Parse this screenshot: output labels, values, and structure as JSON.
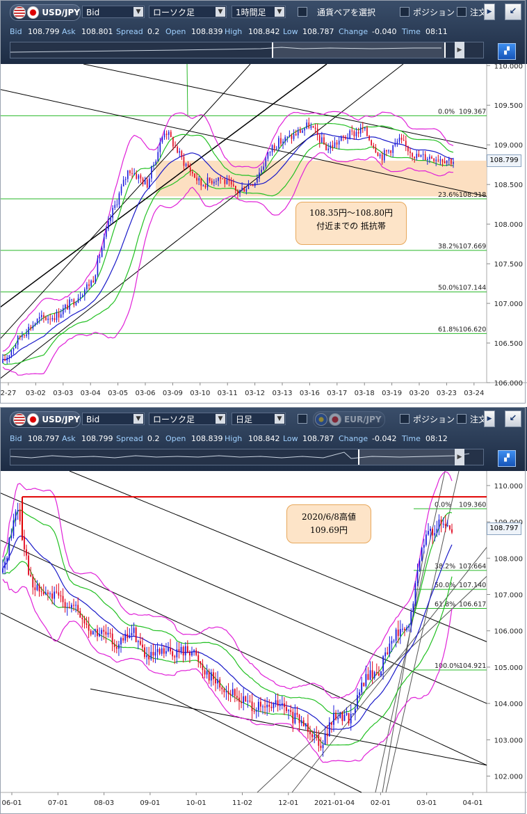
{
  "top": {
    "pair": "USD/JPY",
    "price_type": "Bid",
    "chart_style": "ローソク足",
    "timeframe": "1時間足",
    "select_pair_label": "通貨ペアを選択",
    "position_label": "ポジション",
    "order_label": "注文",
    "quote": {
      "bid_k": "Bid",
      "bid": "108.799",
      "ask_k": "Ask",
      "ask": "108.801",
      "spread_k": "Spread",
      "spread": "0.2",
      "open_k": "Open",
      "open": "108.839",
      "high_k": "High",
      "high": "108.842",
      "low_k": "Low",
      "low": "108.787",
      "change_k": "Change",
      "change": "-0.040",
      "time_k": "Time",
      "time": "08:11"
    },
    "current_price_tag": "108.799",
    "annotation": {
      "line1": "108.35円～108.80円",
      "line2": "付近までの 抵抗帯"
    }
  },
  "bottom": {
    "pair": "USD/JPY",
    "price_type": "Bid",
    "chart_style": "ローソク足",
    "timeframe": "日足",
    "compare_pair": "EUR/JPY",
    "position_label": "ポジション",
    "order_label": "注文",
    "quote": {
      "bid_k": "Bid",
      "bid": "108.797",
      "ask_k": "Ask",
      "ask": "108.799",
      "spread_k": "Spread",
      "spread": "0.2",
      "open_k": "Open",
      "open": "108.839",
      "high_k": "High",
      "high": "108.842",
      "low_k": "Low",
      "low": "108.787",
      "change_k": "Change",
      "change": "-0.042",
      "time_k": "Time",
      "time": "08:12"
    },
    "current_price_tag": "108.797",
    "annotation": {
      "line1": "2020/6/8高値",
      "line2": "109.69円"
    }
  },
  "colors": {
    "bull": "#1a1adc",
    "bear": "#e0001a",
    "upper_band": "#e020d8",
    "mid_band": "#22c022",
    "ma": "#1818c8",
    "fib": "#28b828",
    "trend": "#000000",
    "resistance": "#e00000",
    "zone": "#fbd9b6"
  },
  "chart_data": [
    {
      "type": "candlestick",
      "timeframe": "1時間足",
      "x_tick_labels": [
        "2-27",
        "03-02",
        "03-03",
        "03-04",
        "03-05",
        "03-06",
        "03-09",
        "03-10",
        "03-11",
        "03-12",
        "03-13",
        "03-16",
        "03-17",
        "03-18",
        "03-19",
        "03-20",
        "03-23",
        "03-24"
      ],
      "y_tick_labels": [
        "106.000",
        "106.500",
        "107.000",
        "107.500",
        "108.000",
        "108.500",
        "109.000",
        "109.500",
        "110.000"
      ],
      "ylim": [
        106.0,
        110.02
      ],
      "fibonacci": [
        {
          "label": "0.0%",
          "value": "109.367",
          "y": 109.367
        },
        {
          "label": "23.6%",
          "value": "108.318",
          "y": 108.318
        },
        {
          "label": "38.2%",
          "value": "107.669",
          "y": 107.669
        },
        {
          "label": "50.0%",
          "value": "107.144",
          "y": 107.144
        },
        {
          "label": "61.8%",
          "value": "106.620",
          "y": 106.62
        }
      ],
      "resistance_zone": [
        108.35,
        108.8
      ],
      "close_path": [
        [
          0,
          106.25
        ],
        [
          1,
          106.6
        ],
        [
          2,
          106.8
        ],
        [
          3,
          106.85
        ],
        [
          4,
          107.05
        ],
        [
          5,
          107.3
        ],
        [
          6,
          108.1
        ],
        [
          7,
          108.7
        ],
        [
          8,
          108.5
        ],
        [
          9,
          109.2
        ],
        [
          10,
          108.8
        ],
        [
          11,
          108.5
        ],
        [
          12,
          108.6
        ],
        [
          13,
          108.4
        ],
        [
          14,
          108.55
        ],
        [
          15,
          109.0
        ],
        [
          16,
          109.1
        ],
        [
          17,
          109.25
        ],
        [
          18,
          108.95
        ],
        [
          19,
          109.1
        ],
        [
          20,
          109.2
        ],
        [
          21,
          108.85
        ],
        [
          22,
          109.05
        ],
        [
          23,
          108.85
        ],
        [
          24,
          108.85
        ],
        [
          25,
          108.8
        ]
      ]
    },
    {
      "type": "candlestick",
      "timeframe": "日足",
      "x_tick_labels": [
        "06-01",
        "07-01",
        "08-03",
        "09-01",
        "10-01",
        "11-02",
        "12-01",
        "2021-01-04",
        "02-01",
        "03-01",
        "04-01"
      ],
      "y_tick_labels": [
        "102.000",
        "103.000",
        "104.000",
        "105.000",
        "106.000",
        "107.000",
        "108.000",
        "109.000",
        "110.000"
      ],
      "ylim": [
        101.55,
        110.4
      ],
      "fibonacci": [
        {
          "label": "0.0%",
          "value": "109.360",
          "y": 109.36
        },
        {
          "label": "38.2%",
          "value": "107.664",
          "y": 107.664
        },
        {
          "label": "50.0%",
          "value": "107.140",
          "y": 107.14
        },
        {
          "label": "61.8%",
          "value": "106.617",
          "y": 106.617
        },
        {
          "label": "100.0%",
          "value": "104.921",
          "y": 104.921
        }
      ],
      "resistance_line": 109.69,
      "close_path": [
        [
          0,
          107.6
        ],
        [
          1,
          109.5
        ],
        [
          2,
          107.2
        ],
        [
          3,
          107.0
        ],
        [
          4,
          106.9
        ],
        [
          5,
          106.6
        ],
        [
          6,
          106.0
        ],
        [
          7,
          105.9
        ],
        [
          8,
          105.6
        ],
        [
          9,
          106.0
        ],
        [
          10,
          105.2
        ],
        [
          11,
          105.4
        ],
        [
          12,
          105.4
        ],
        [
          13,
          105.5
        ],
        [
          14,
          104.9
        ],
        [
          15,
          104.5
        ],
        [
          16,
          104.2
        ],
        [
          17,
          104.0
        ],
        [
          18,
          103.8
        ],
        [
          19,
          104.0
        ],
        [
          20,
          103.6
        ],
        [
          21,
          103.4
        ],
        [
          22,
          102.9
        ],
        [
          23,
          103.7
        ],
        [
          24,
          103.6
        ],
        [
          25,
          104.7
        ],
        [
          26,
          104.9
        ],
        [
          27,
          105.9
        ],
        [
          28,
          106.0
        ],
        [
          29,
          108.5
        ],
        [
          30,
          108.9
        ],
        [
          31,
          108.8
        ]
      ]
    }
  ]
}
